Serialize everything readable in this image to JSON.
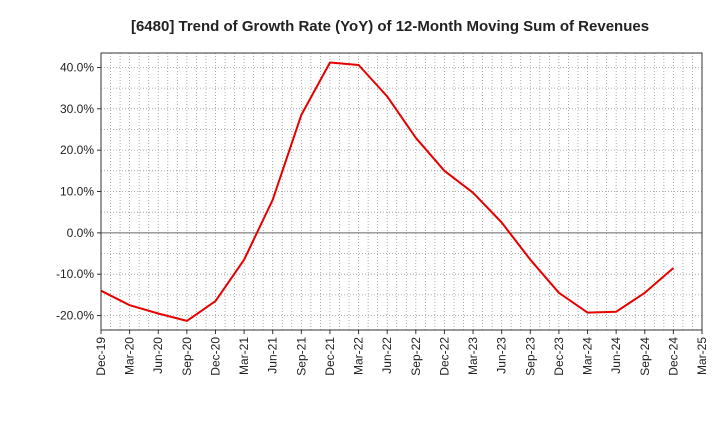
{
  "chart_data": {
    "type": "line",
    "title": "[6480]  Trend of Growth Rate (YoY) of 12-Month Moving Sum of Revenues",
    "xlabel": "",
    "ylabel": "",
    "x_tick_labels": [
      "Dec-19",
      "Mar-20",
      "Jun-20",
      "Sep-20",
      "Dec-20",
      "Mar-21",
      "Jun-21",
      "Sep-21",
      "Dec-21",
      "Mar-22",
      "Jun-22",
      "Sep-22",
      "Dec-22",
      "Mar-23",
      "Jun-23",
      "Sep-23",
      "Dec-23",
      "Mar-24",
      "Jun-24",
      "Sep-24",
      "Dec-24",
      "Mar-25"
    ],
    "y_tick_labels": [
      "40.0%",
      "30.0%",
      "20.0%",
      "10.0%",
      "0.0%",
      "-10.0%",
      "-20.0%"
    ],
    "y_ticks": [
      40,
      30,
      20,
      10,
      0,
      -10,
      -20
    ],
    "ylim": [
      -23.5,
      43.5
    ],
    "grid": true,
    "series": [
      {
        "color": "#e60000",
        "x": [
          "Dec-19",
          "Mar-20",
          "Jun-20",
          "Sep-20",
          "Dec-20",
          "Mar-21",
          "Jun-21",
          "Sep-21",
          "Dec-21",
          "Mar-22",
          "Jun-22",
          "Sep-22",
          "Dec-22",
          "Mar-23",
          "Jun-23",
          "Sep-23",
          "Dec-23",
          "Mar-24",
          "Jun-24",
          "Sep-24",
          "Dec-24"
        ],
        "values": [
          -14.0,
          -17.5,
          -19.5,
          -21.3,
          -16.5,
          -6.5,
          8.0,
          28.5,
          41.2,
          40.6,
          33.0,
          23.0,
          15.0,
          9.7,
          2.5,
          -6.5,
          -14.5,
          -19.3,
          -19.1,
          -14.5,
          -8.5
        ]
      }
    ]
  }
}
